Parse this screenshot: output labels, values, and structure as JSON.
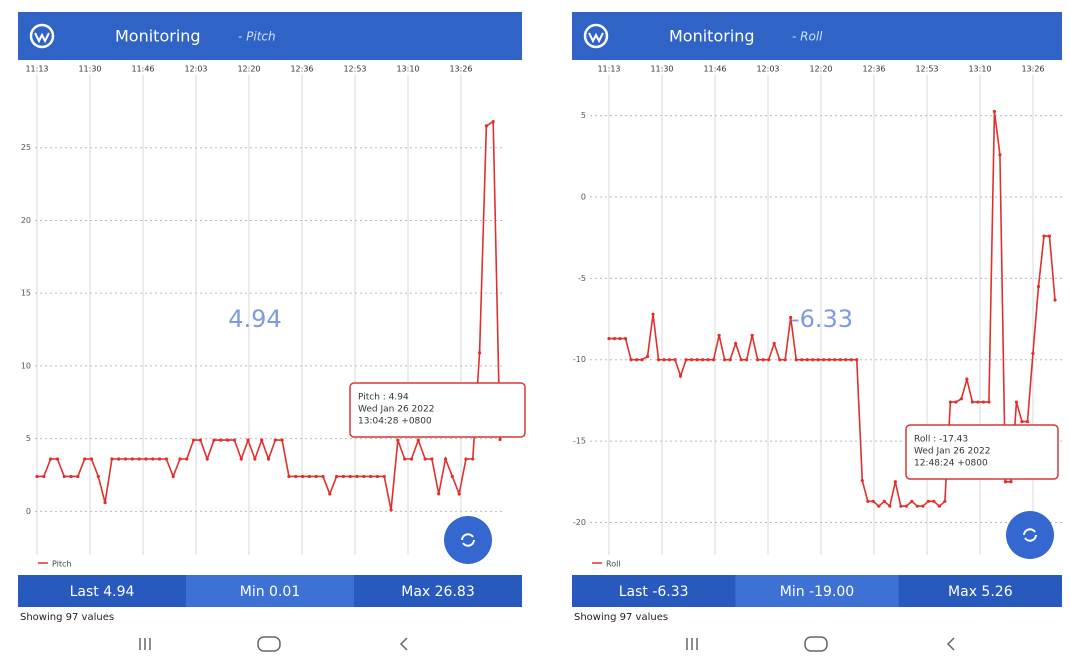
{
  "chart_data": [
    {
      "type": "line",
      "ylim": [
        -3,
        30
      ],
      "yticks": [
        0,
        5,
        10,
        15,
        20,
        25
      ],
      "grid": true,
      "xtick_labels": [
        "11:13",
        "11:30",
        "11:46",
        "12:03",
        "12:20",
        "12:36",
        "12:53",
        "13:10",
        "13:26"
      ],
      "series": [
        {
          "name": "Pitch",
          "color": "#e0302e",
          "values": [
            2.4,
            2.4,
            3.6,
            3.6,
            2.4,
            2.4,
            2.4,
            3.6,
            3.6,
            2.4,
            0.6,
            3.6,
            3.6,
            3.6,
            3.6,
            3.6,
            3.6,
            3.6,
            3.6,
            3.6,
            2.4,
            3.6,
            3.6,
            4.9,
            4.9,
            3.6,
            4.9,
            4.9,
            4.9,
            4.9,
            3.6,
            4.9,
            3.6,
            4.9,
            3.6,
            4.9,
            4.9,
            2.4,
            2.4,
            2.4,
            2.4,
            2.4,
            2.4,
            1.2,
            2.4,
            2.4,
            2.4,
            2.4,
            2.4,
            2.4,
            2.4,
            2.4,
            0.1,
            4.9,
            3.6,
            3.6,
            4.9,
            3.6,
            3.6,
            1.2,
            3.6,
            2.4,
            1.2,
            3.6,
            3.6,
            10.9,
            26.5,
            26.8,
            4.94
          ]
        }
      ]
    },
    {
      "type": "line",
      "ylim": [
        -22,
        7.5
      ],
      "yticks": [
        5,
        0,
        -5,
        -10,
        -15,
        -20
      ],
      "grid": true,
      "xtick_labels": [
        "11:13",
        "11:30",
        "11:46",
        "12:03",
        "12:20",
        "12:36",
        "12:53",
        "13:10",
        "13:26"
      ],
      "series": [
        {
          "name": "Roll",
          "color": "#e0302e",
          "values": [
            -8.7,
            -8.7,
            -8.7,
            -8.7,
            -10,
            -10,
            -10,
            -9.8,
            -7.2,
            -10,
            -10,
            -10,
            -10,
            -11,
            -10,
            -10,
            -10,
            -10,
            -10,
            -10,
            -8.5,
            -10,
            -10,
            -9,
            -10,
            -10,
            -8.5,
            -10,
            -10,
            -10,
            -9,
            -10,
            -10,
            -7.4,
            -10,
            -10,
            -10,
            -10,
            -10,
            -10,
            -10,
            -10,
            -10,
            -10,
            -10,
            -10,
            -17.43,
            -18.7,
            -18.7,
            -19,
            -18.7,
            -19,
            -17.5,
            -19,
            -19,
            -18.7,
            -19,
            -19,
            -18.7,
            -18.7,
            -19,
            -18.7,
            -12.6,
            -12.6,
            -12.4,
            -11.2,
            -12.6,
            -12.6,
            -12.6,
            -12.6,
            5.26,
            2.6,
            -17.5,
            -17.5,
            -12.6,
            -13.8,
            -13.8,
            -9.6,
            -5.5,
            -2.4,
            -2.4,
            -6.33
          ]
        }
      ]
    }
  ],
  "screens": [
    {
      "header": {
        "title": "Monitoring",
        "subtitle": "- Pitch"
      },
      "current_value": "4.94",
      "tooltip": [
        "Pitch : 4.94",
        "Wed Jan 26 2022",
        "13:04:28 +0800"
      ],
      "stats": [
        "Last 4.94",
        "Min 0.01",
        "Max 26.83"
      ],
      "footer": "Showing  97 values"
    },
    {
      "header": {
        "title": "Monitoring",
        "subtitle": "- Roll"
      },
      "current_value": "-6.33",
      "tooltip": [
        "Roll : -17.43",
        "Wed Jan 26 2022",
        "12:48:24 +0800"
      ],
      "stats": [
        "Last -6.33",
        "Min -19.00",
        "Max 5.26"
      ],
      "footer": "Showing  97 values"
    }
  ]
}
